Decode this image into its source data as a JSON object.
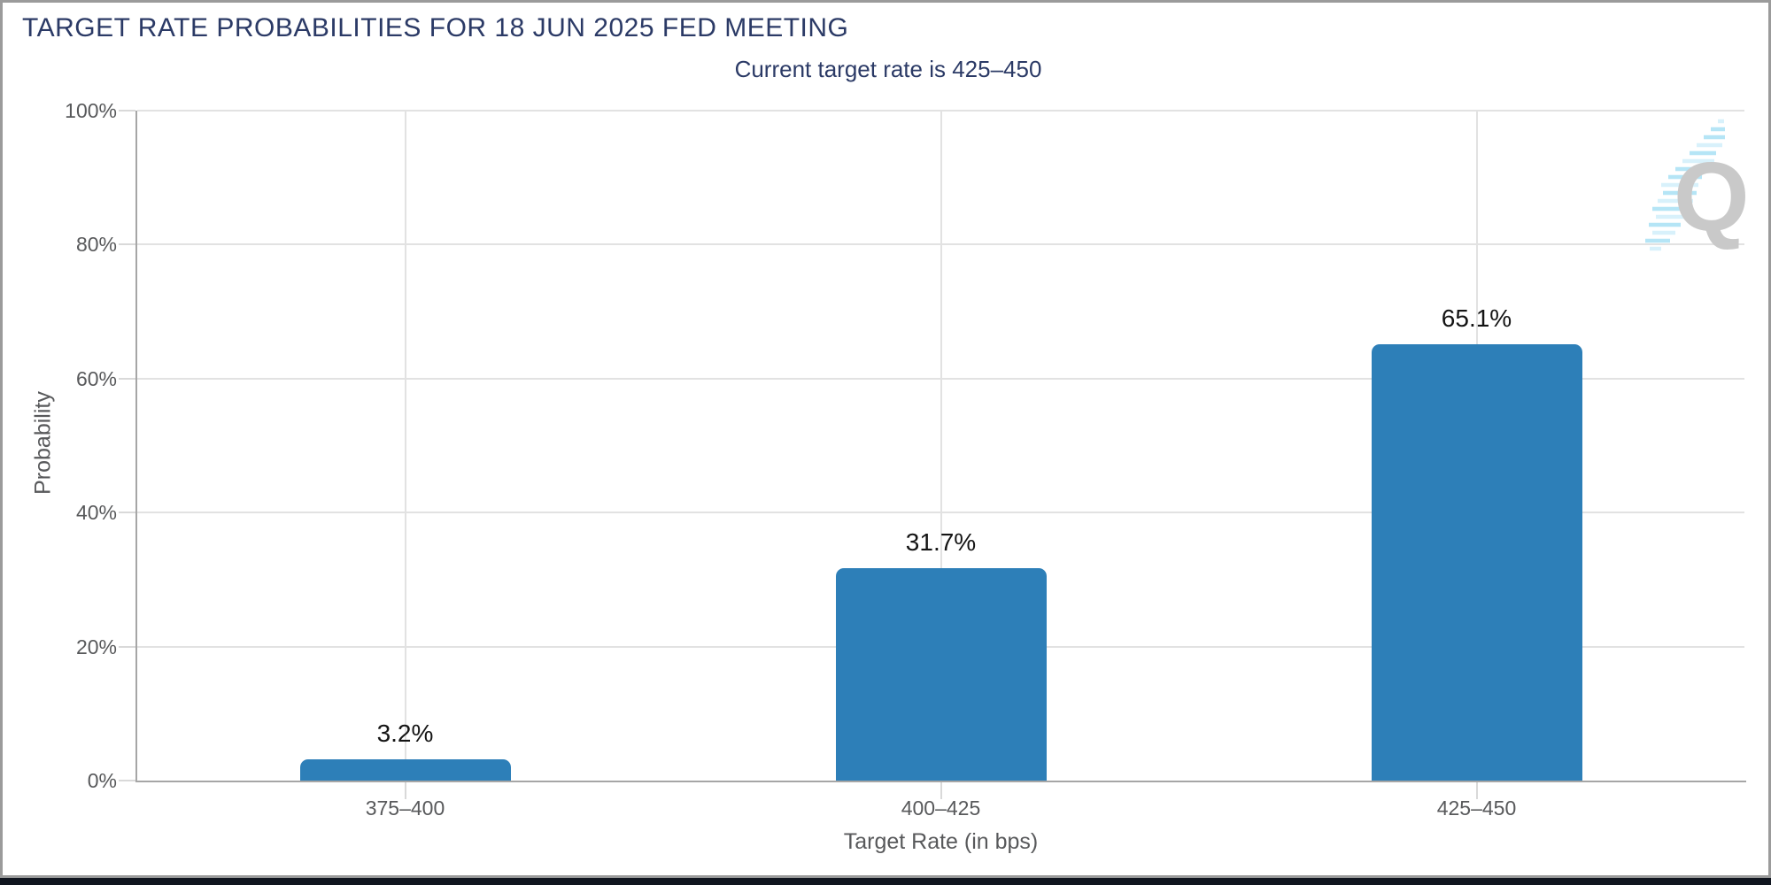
{
  "header": {
    "title": "TARGET RATE PROBABILITIES FOR 18 JUN 2025 FED MEETING",
    "subtitle": "Current target rate is 425–450"
  },
  "chart_data": {
    "type": "bar",
    "title": "TARGET RATE PROBABILITIES FOR 18 JUN 2025 FED MEETING",
    "subtitle": "Current target rate is 425–450",
    "categories": [
      "375–400",
      "400–425",
      "425–450"
    ],
    "values": [
      3.2,
      31.7,
      65.1
    ],
    "value_labels": [
      "3.2%",
      "31.7%",
      "65.1%"
    ],
    "xlabel": "Target Rate (in bps)",
    "ylabel": "Probability",
    "ylim": [
      0,
      100
    ],
    "yticks": [
      0,
      20,
      40,
      60,
      80,
      100
    ],
    "ytick_labels": [
      "0%",
      "20%",
      "40%",
      "60%",
      "80%",
      "100%"
    ],
    "grid": true,
    "legend": "none",
    "bar_color": "#2d7fb8"
  },
  "colors": {
    "title_navy": "#2b3a66",
    "label_gray": "#58595b",
    "axis_line": "#a6a6a6",
    "gridline": "#e2e2e2",
    "bar_blue": "#2d7fb8",
    "value_text": "#141414",
    "footer_bar": "#10151f",
    "logo_gray": "#c9c9c9",
    "logo_stripe_blue": "#b5e5f6"
  },
  "logo": {
    "letter": "Q"
  }
}
